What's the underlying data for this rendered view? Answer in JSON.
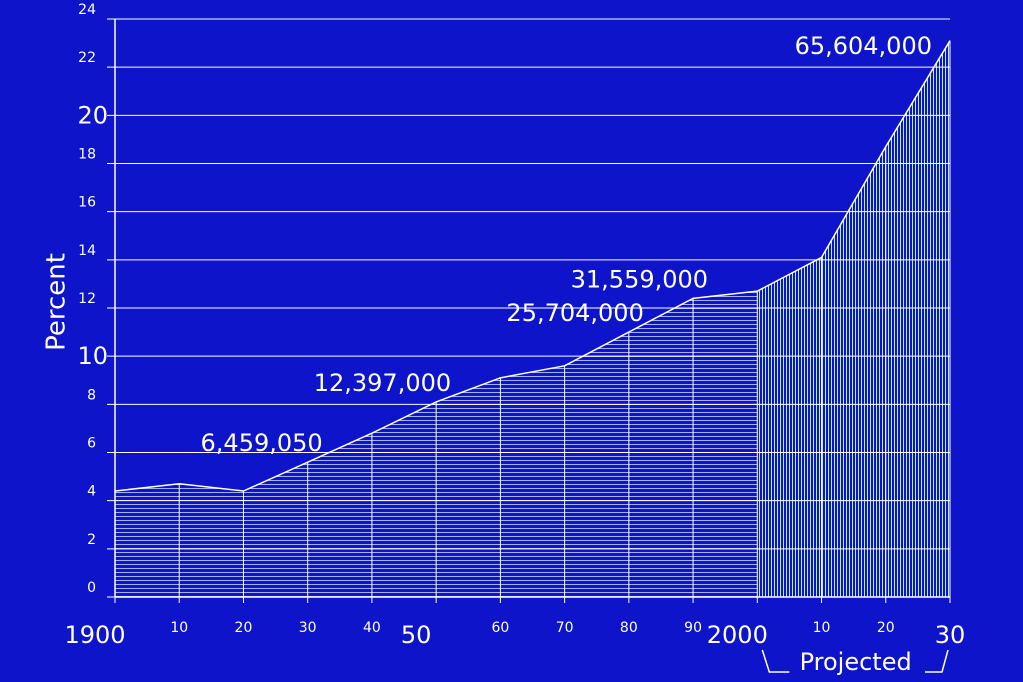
{
  "chart_data": {
    "type": "area",
    "y_label": "Percent",
    "x": [
      1900,
      1910,
      1920,
      1930,
      1940,
      1950,
      1960,
      1970,
      1980,
      1990,
      2000,
      2010,
      2020,
      2030
    ],
    "values": [
      4.4,
      4.7,
      4.4,
      5.6,
      6.8,
      8.1,
      9.1,
      9.6,
      11.0,
      12.4,
      12.7,
      14.1,
      18.7,
      23.1
    ],
    "color": "#ffffff",
    "projected": {
      "label": "Projected",
      "x_start": 2000,
      "x_end": 2030
    },
    "annotations": [
      {
        "text": "6,459,050",
        "x": 1930
      },
      {
        "text": "12,397,000",
        "x": 1950
      },
      {
        "text": "25,704,000",
        "x": 1980
      },
      {
        "text": "31,559,000",
        "x": 1990
      },
      {
        "text": "65,604,000",
        "x": 2030
      }
    ],
    "xlim": [
      1900,
      2030
    ],
    "xticks": [
      1900,
      {
        "value": 1910,
        "label": "10"
      },
      {
        "value": 1920,
        "label": "20"
      },
      {
        "value": 1930,
        "label": "30"
      },
      {
        "value": 1940,
        "label": "40"
      },
      {
        "value": 1950,
        "label": "50"
      },
      {
        "value": 1960,
        "label": "60"
      },
      {
        "value": 1970,
        "label": "70"
      },
      {
        "value": 1980,
        "label": "80"
      },
      {
        "value": 1990,
        "label": "90"
      },
      2000,
      {
        "value": 2010,
        "label": "10"
      },
      {
        "value": 2020,
        "label": "20"
      },
      {
        "value": 2030,
        "label": "30"
      }
    ],
    "ylim": [
      0,
      24
    ],
    "yticks": [
      0,
      2,
      4,
      6,
      8,
      10,
      12,
      14,
      16,
      18,
      20,
      22,
      24
    ],
    "grid": true
  }
}
